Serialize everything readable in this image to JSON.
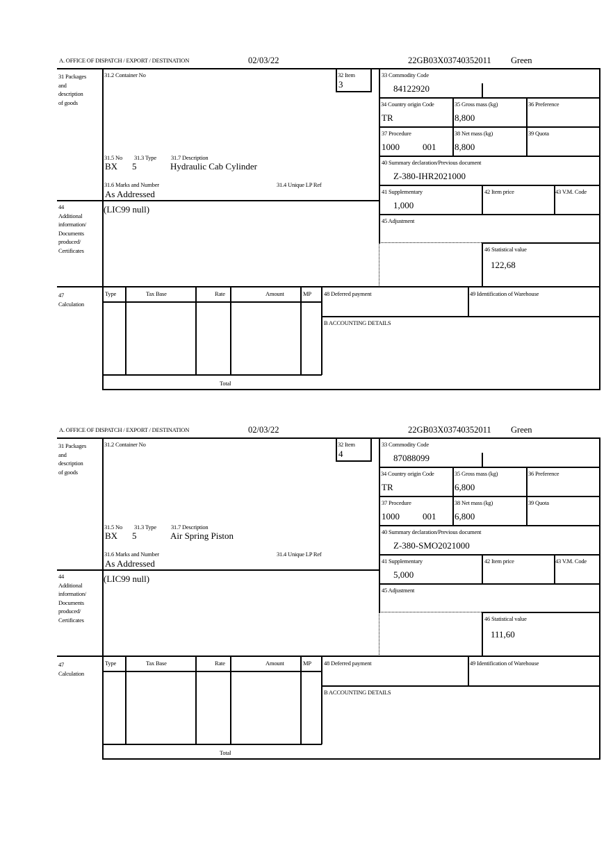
{
  "header_label": "A.  OFFICE OF DISPATCH / EXPORT / DESTINATION",
  "labels": {
    "packages": "31 Packages\nand\ndescription\nof goods",
    "container_no": "31.2 Container No",
    "item": "32 Item",
    "no": "31.5 No",
    "type": "31.3 Type",
    "description": "31.7 Description",
    "marks": "31.6 Marks and Number",
    "unique_lp": "31.4 Unique LP Ref",
    "commodity": "33 Commodity Code",
    "country": "34 Country origin Code",
    "gross": "35 Gross mass (kg)",
    "preference": "36 Preference",
    "procedure": "37 Procedure",
    "net": "38 Net mass (kg)",
    "quota": "39 Quota",
    "summary": "40 Summary declaration/Previous document",
    "supplementary": "41 Supplementary",
    "item_price": "42 Item price",
    "vm_code": "43 V.M. Code",
    "additional": "44\nAdditional\ninformation/\nDocuments\nproduced/\nCertificates",
    "adjustment": "45 Adjustment",
    "statistical": "46 Statistical value",
    "calculation": "47\nCalculation",
    "calc_type": "Type",
    "calc_tax_base": "Tax Base",
    "calc_rate": "Rate",
    "calc_amount": "Amount",
    "calc_mp": "MP",
    "calc_total": "Total",
    "deferred": "48 Deferred payment",
    "warehouse": "49 Identification of Warehouse",
    "accounting": "B ACCOUNTING DETAILS"
  },
  "items": [
    {
      "date": "02/03/22",
      "reference": "22GB03X03740352011",
      "route": "Green",
      "item_no": "3",
      "pkg_kind": "BX",
      "pkg_count": "5",
      "description": "Hydraulic Cab Cylinder",
      "marks": "As Addressed",
      "additional_info": "(LIC99 null)",
      "commodity_code": "84122920",
      "country": "TR",
      "gross_mass": "8,800",
      "procedure": "1000",
      "procedure_ext": "001",
      "net_mass": "8,800",
      "previous_document": "Z-380-IHR2021000",
      "supplementary": "1,000",
      "statistical_value": "122,68"
    },
    {
      "date": "02/03/22",
      "reference": "22GB03X03740352011",
      "route": "Green",
      "item_no": "4",
      "pkg_kind": "BX",
      "pkg_count": "5",
      "description": "Air Spring Piston",
      "marks": "As Addressed",
      "additional_info": "(LIC99 null)",
      "commodity_code": "87088099",
      "country": "TR",
      "gross_mass": "6,800",
      "procedure": "1000",
      "procedure_ext": "001",
      "net_mass": "6,800",
      "previous_document": "Z-380-SMO2021000",
      "supplementary": "5,000",
      "statistical_value": "111,60"
    }
  ]
}
